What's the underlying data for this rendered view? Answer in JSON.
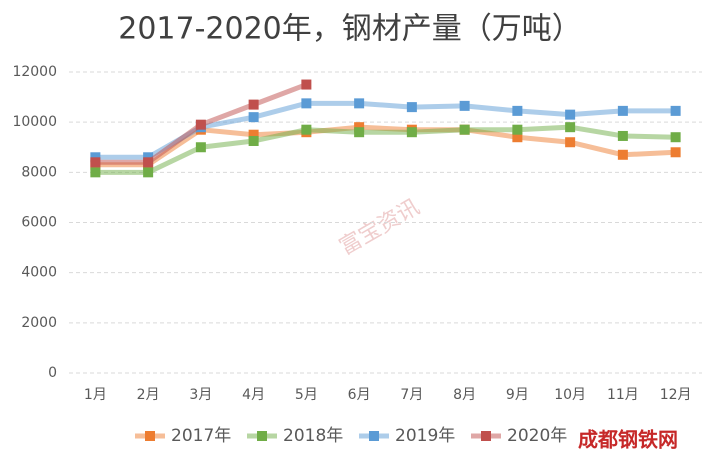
{
  "chart_data": {
    "type": "line",
    "title": "2017-2020年，钢材产量（万吨）",
    "categories": [
      "1月",
      "2月",
      "3月",
      "4月",
      "5月",
      "6月",
      "7月",
      "8月",
      "9月",
      "10月",
      "11月",
      "12月"
    ],
    "series": [
      {
        "name": "2017年",
        "color": "#ed7d31",
        "values": [
          8300,
          8300,
          9700,
          9500,
          9600,
          9800,
          9700,
          9700,
          9400,
          9200,
          8700,
          8800
        ]
      },
      {
        "name": "2018年",
        "color": "#70ad47",
        "values": [
          8000,
          8000,
          9000,
          9250,
          9700,
          9600,
          9600,
          9700,
          9700,
          9800,
          9450,
          9400
        ]
      },
      {
        "name": "2019年",
        "color": "#5b9bd5",
        "values": [
          8600,
          8600,
          9800,
          10200,
          10750,
          10750,
          10600,
          10650,
          10450,
          10300,
          10450,
          10450
        ]
      },
      {
        "name": "2020年",
        "color": "#c0504d",
        "values": [
          8400,
          8400,
          9900,
          10700,
          11500,
          null,
          null,
          null,
          null,
          null,
          null,
          null
        ]
      }
    ],
    "ylim": [
      0,
      12000
    ],
    "yticks": [
      0,
      2000,
      4000,
      6000,
      8000,
      10000,
      12000
    ],
    "grid": true,
    "legend": "bottom",
    "watermarks": [
      "富宝资讯",
      "成都钢铁网"
    ]
  }
}
